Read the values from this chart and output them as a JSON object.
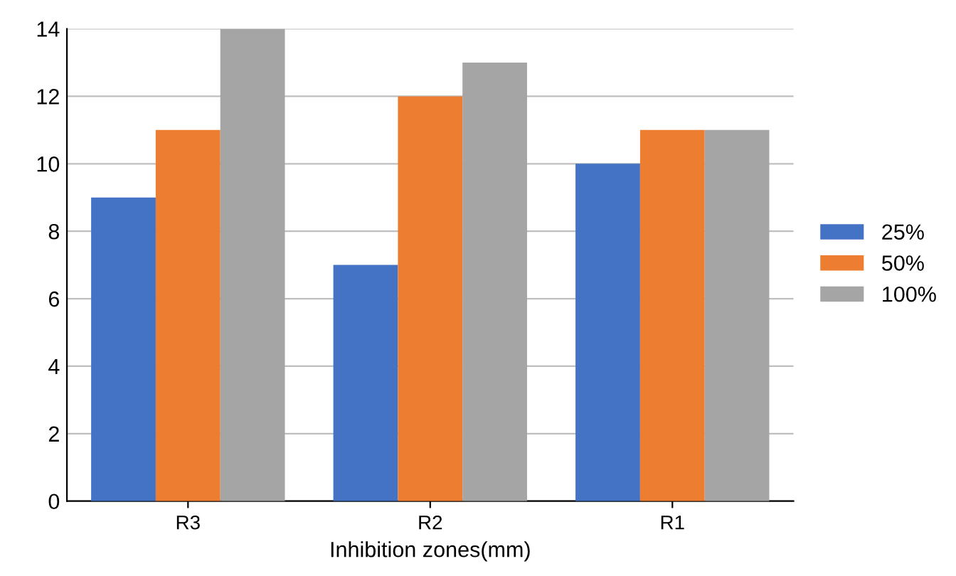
{
  "chart_data": {
    "type": "bar",
    "xlabel": "Inhibition zones(mm)",
    "categories": [
      "R3",
      "R2",
      "R1"
    ],
    "series": [
      {
        "name": "25%",
        "color": "#4472c4",
        "values": [
          9,
          7,
          10
        ]
      },
      {
        "name": "50%",
        "color": "#ed7d31",
        "values": [
          11,
          12,
          11
        ]
      },
      {
        "name": "100%",
        "color": "#a5a5a5",
        "values": [
          14,
          13,
          11
        ]
      }
    ],
    "ylim": [
      0,
      14
    ],
    "yticks": [
      0,
      2,
      4,
      6,
      8,
      10,
      12,
      14
    ],
    "grid": "y",
    "legend": "right"
  }
}
